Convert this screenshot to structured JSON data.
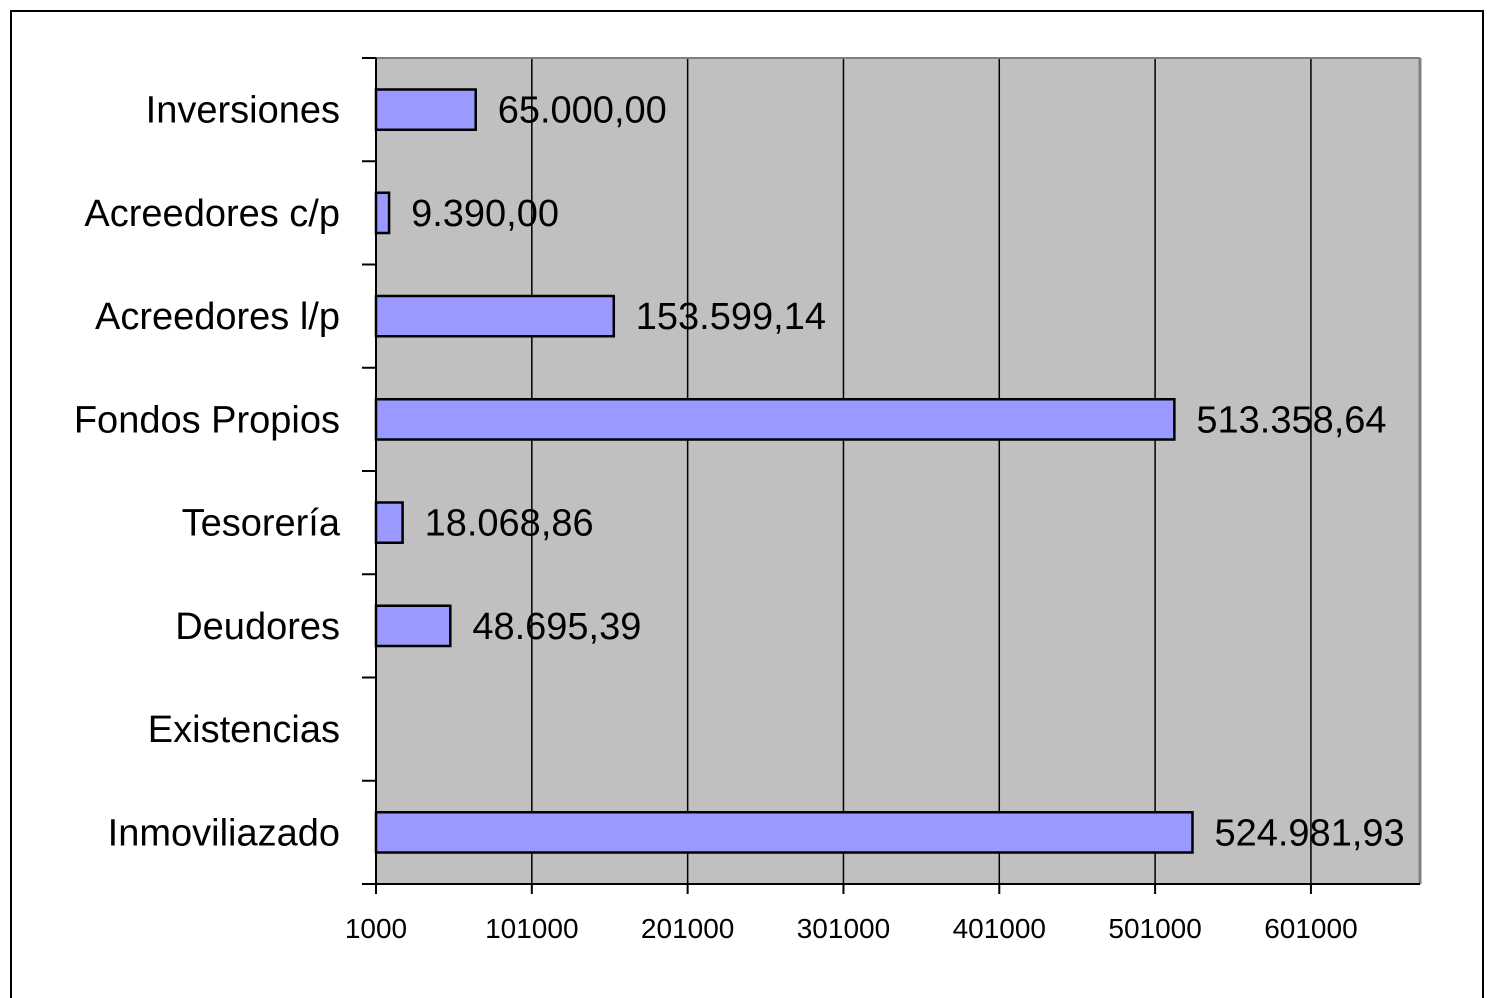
{
  "chart_data": {
    "type": "bar",
    "orientation": "horizontal",
    "categories": [
      "Inversiones",
      "Acreedores c/p",
      "Acreedores l/p",
      "Fondos Propios",
      "Tesorería",
      "Deudores",
      "Existencias",
      "Inmoviliazado"
    ],
    "values": [
      65000.0,
      9390.0,
      153599.14,
      513358.64,
      18068.86,
      48695.39,
      0,
      524981.93
    ],
    "value_labels": [
      "65.000,00",
      "9.390,00",
      "153.599,14",
      "513.358,64",
      "18.068,86",
      "48.695,39",
      "",
      "524.981,93"
    ],
    "xlim": [
      1000,
      671000
    ],
    "xticks": [
      1000,
      101000,
      201000,
      301000,
      401000,
      501000,
      601000
    ],
    "xtick_labels": [
      "1000",
      "101000",
      "201000",
      "301000",
      "401000",
      "501000",
      "601000"
    ],
    "title": "",
    "xlabel": "",
    "ylabel": "",
    "grid": "vertical",
    "legend": "none",
    "colors": {
      "bar_fill": "#9999ff",
      "bar_stroke": "#000000",
      "plot_background": "#c0c0c0",
      "gridline": "#000000"
    }
  }
}
